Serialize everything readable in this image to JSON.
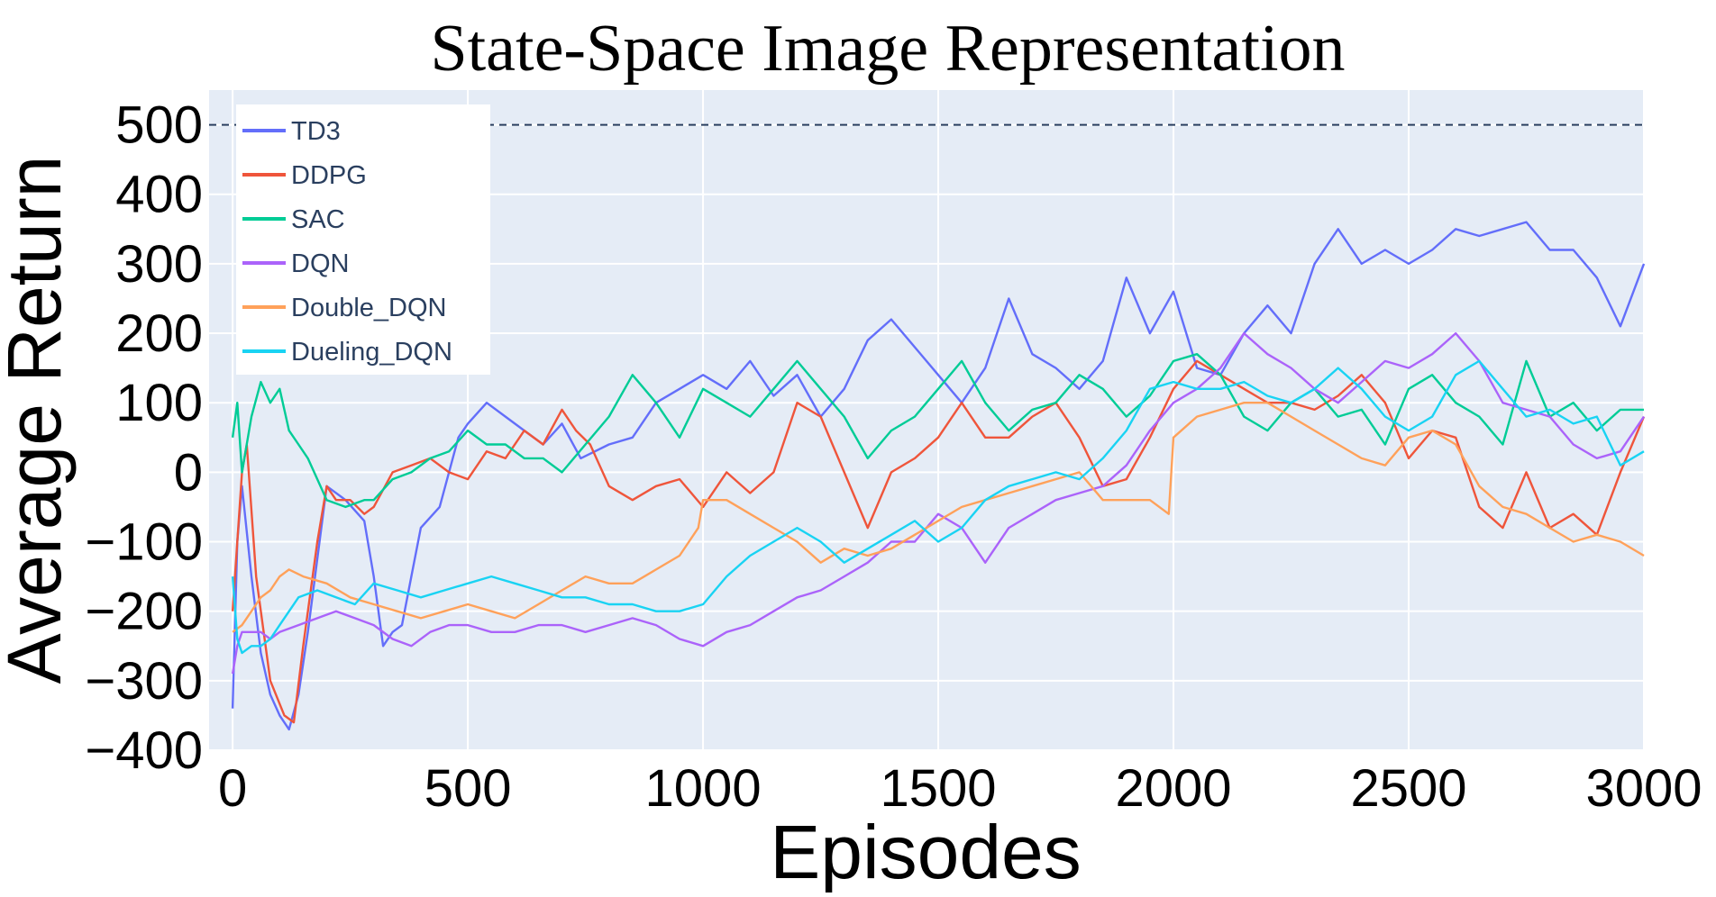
{
  "chart_data": {
    "type": "line",
    "title": "State-Space Image Representation",
    "xlabel": "Episodes",
    "ylabel": "Average Return",
    "xlim": [
      -50,
      3000
    ],
    "ylim": [
      -400,
      550
    ],
    "xticks": [
      0,
      500,
      1000,
      1500,
      2000,
      2500,
      3000
    ],
    "xtick_labels": [
      "0",
      "500",
      "1000",
      "1500",
      "2000",
      "2500",
      "3000"
    ],
    "yticks": [
      -400,
      -300,
      -200,
      -100,
      0,
      100,
      200,
      300,
      400,
      500
    ],
    "ytick_labels": [
      "−400",
      "−300",
      "−200",
      "−100",
      "0",
      "100",
      "200",
      "300",
      "400",
      "500"
    ],
    "grid": true,
    "background_color": "#e5ecf6",
    "legend_position": "top-left",
    "reference_line": {
      "y": 500,
      "style": "dashed",
      "color": "#2a3f5f"
    },
    "series": [
      {
        "name": "TD3",
        "color": "#636efa",
        "x": [
          0,
          10,
          20,
          40,
          60,
          80,
          100,
          120,
          140,
          160,
          200,
          240,
          280,
          300,
          320,
          340,
          360,
          380,
          400,
          440,
          480,
          500,
          540,
          580,
          620,
          660,
          700,
          740,
          800,
          850,
          900,
          950,
          1000,
          1050,
          1100,
          1150,
          1200,
          1250,
          1300,
          1350,
          1400,
          1450,
          1500,
          1550,
          1600,
          1650,
          1700,
          1750,
          1800,
          1850,
          1900,
          1950,
          2000,
          2050,
          2100,
          2150,
          2200,
          2250,
          2300,
          2350,
          2400,
          2450,
          2500,
          2550,
          2600,
          2650,
          2700,
          2750,
          2800,
          2850,
          2900,
          2950,
          3000
        ],
        "y": [
          -340,
          -100,
          -20,
          -150,
          -260,
          -320,
          -350,
          -370,
          -320,
          -230,
          -20,
          -40,
          -70,
          -150,
          -250,
          -230,
          -220,
          -150,
          -80,
          -50,
          50,
          70,
          100,
          80,
          60,
          40,
          70,
          20,
          40,
          50,
          100,
          120,
          140,
          120,
          160,
          110,
          140,
          80,
          120,
          190,
          220,
          180,
          140,
          100,
          150,
          250,
          170,
          150,
          120,
          160,
          280,
          200,
          260,
          150,
          140,
          200,
          240,
          200,
          300,
          350,
          300,
          320,
          300,
          320,
          350,
          340,
          350,
          360,
          320,
          320,
          280,
          210,
          300
        ]
      },
      {
        "name": "DDPG",
        "color": "#ef553b",
        "x": [
          0,
          10,
          20,
          30,
          50,
          80,
          110,
          130,
          150,
          180,
          200,
          220,
          250,
          280,
          300,
          340,
          380,
          420,
          460,
          500,
          540,
          580,
          620,
          660,
          700,
          730,
          760,
          800,
          850,
          900,
          950,
          1000,
          1050,
          1100,
          1150,
          1200,
          1250,
          1300,
          1350,
          1400,
          1450,
          1500,
          1550,
          1600,
          1650,
          1700,
          1750,
          1800,
          1850,
          1900,
          1950,
          2000,
          2050,
          2100,
          2150,
          2200,
          2250,
          2300,
          2350,
          2400,
          2450,
          2500,
          2550,
          2600,
          2650,
          2700,
          2750,
          2800,
          2850,
          2900,
          2950,
          3000
        ],
        "y": [
          -200,
          -100,
          0,
          40,
          -150,
          -300,
          -350,
          -360,
          -250,
          -100,
          -20,
          -40,
          -40,
          -60,
          -50,
          0,
          10,
          20,
          0,
          -10,
          30,
          20,
          60,
          40,
          90,
          60,
          40,
          -20,
          -40,
          -20,
          -10,
          -50,
          0,
          -30,
          0,
          100,
          80,
          0,
          -80,
          0,
          20,
          50,
          100,
          50,
          50,
          80,
          100,
          50,
          -20,
          -10,
          50,
          120,
          160,
          140,
          120,
          100,
          100,
          90,
          110,
          140,
          100,
          20,
          60,
          50,
          -50,
          -80,
          0,
          -80,
          -60,
          -90,
          0,
          80
        ]
      },
      {
        "name": "SAC",
        "color": "#00cc96",
        "x": [
          0,
          10,
          20,
          40,
          60,
          80,
          100,
          120,
          140,
          160,
          180,
          200,
          240,
          280,
          300,
          340,
          380,
          420,
          460,
          500,
          540,
          580,
          620,
          660,
          700,
          750,
          800,
          850,
          900,
          950,
          1000,
          1050,
          1100,
          1150,
          1200,
          1250,
          1300,
          1350,
          1400,
          1450,
          1500,
          1550,
          1600,
          1650,
          1700,
          1750,
          1800,
          1850,
          1900,
          1950,
          2000,
          2050,
          2100,
          2150,
          2200,
          2250,
          2300,
          2350,
          2400,
          2450,
          2500,
          2550,
          2600,
          2650,
          2700,
          2750,
          2800,
          2850,
          2900,
          2950,
          3000
        ],
        "y": [
          50,
          100,
          0,
          80,
          130,
          100,
          120,
          60,
          40,
          20,
          -10,
          -40,
          -50,
          -40,
          -40,
          -10,
          0,
          20,
          30,
          60,
          40,
          40,
          20,
          20,
          0,
          40,
          80,
          140,
          100,
          50,
          120,
          100,
          80,
          120,
          160,
          120,
          80,
          20,
          60,
          80,
          120,
          160,
          100,
          60,
          90,
          100,
          140,
          120,
          80,
          110,
          160,
          170,
          140,
          80,
          60,
          100,
          120,
          80,
          90,
          40,
          120,
          140,
          100,
          80,
          40,
          160,
          80,
          100,
          60,
          90,
          90
        ]
      },
      {
        "name": "DQN",
        "color": "#ab63fa",
        "x": [
          0,
          10,
          20,
          40,
          60,
          80,
          100,
          140,
          180,
          220,
          260,
          300,
          340,
          380,
          420,
          460,
          500,
          550,
          600,
          650,
          700,
          750,
          800,
          850,
          900,
          950,
          1000,
          1050,
          1100,
          1150,
          1200,
          1250,
          1300,
          1350,
          1400,
          1450,
          1500,
          1550,
          1600,
          1650,
          1700,
          1750,
          1800,
          1850,
          1900,
          1950,
          2000,
          2050,
          2100,
          2150,
          2200,
          2250,
          2300,
          2350,
          2400,
          2450,
          2500,
          2550,
          2600,
          2650,
          2700,
          2750,
          2800,
          2850,
          2900,
          2950,
          3000
        ],
        "y": [
          -290,
          -250,
          -230,
          -230,
          -230,
          -240,
          -230,
          -220,
          -210,
          -200,
          -210,
          -220,
          -240,
          -250,
          -230,
          -220,
          -220,
          -230,
          -230,
          -220,
          -220,
          -230,
          -220,
          -210,
          -220,
          -240,
          -250,
          -230,
          -220,
          -200,
          -180,
          -170,
          -150,
          -130,
          -100,
          -100,
          -60,
          -80,
          -130,
          -80,
          -60,
          -40,
          -30,
          -20,
          10,
          60,
          100,
          120,
          150,
          200,
          170,
          150,
          120,
          100,
          130,
          160,
          150,
          170,
          200,
          160,
          100,
          90,
          80,
          40,
          20,
          30,
          80
        ]
      },
      {
        "name": "Double_DQN",
        "color": "#ffa15a",
        "x": [
          0,
          20,
          40,
          60,
          80,
          100,
          120,
          150,
          200,
          250,
          300,
          350,
          400,
          450,
          500,
          550,
          600,
          650,
          700,
          750,
          800,
          850,
          900,
          950,
          990,
          1000,
          1050,
          1100,
          1150,
          1200,
          1250,
          1300,
          1350,
          1400,
          1450,
          1500,
          1550,
          1600,
          1650,
          1700,
          1750,
          1800,
          1850,
          1900,
          1950,
          1990,
          2000,
          2050,
          2100,
          2150,
          2200,
          2250,
          2300,
          2350,
          2400,
          2450,
          2500,
          2550,
          2600,
          2650,
          2700,
          2750,
          2800,
          2850,
          2900,
          2950,
          3000
        ],
        "y": [
          -230,
          -220,
          -200,
          -180,
          -170,
          -150,
          -140,
          -150,
          -160,
          -180,
          -190,
          -200,
          -210,
          -200,
          -190,
          -200,
          -210,
          -190,
          -170,
          -150,
          -160,
          -160,
          -140,
          -120,
          -80,
          -40,
          -40,
          -60,
          -80,
          -100,
          -130,
          -110,
          -120,
          -110,
          -90,
          -70,
          -50,
          -40,
          -30,
          -20,
          -10,
          0,
          -40,
          -40,
          -40,
          -60,
          50,
          80,
          90,
          100,
          100,
          80,
          60,
          40,
          20,
          10,
          50,
          60,
          40,
          -20,
          -50,
          -60,
          -80,
          -100,
          -90,
          -100,
          -120
        ]
      },
      {
        "name": "Dueling_DQN",
        "color": "#19d3f3",
        "x": [
          0,
          10,
          20,
          40,
          60,
          80,
          100,
          140,
          180,
          220,
          260,
          300,
          350,
          400,
          450,
          500,
          550,
          600,
          650,
          700,
          750,
          800,
          850,
          900,
          950,
          1000,
          1050,
          1100,
          1150,
          1200,
          1250,
          1300,
          1350,
          1400,
          1450,
          1500,
          1550,
          1600,
          1650,
          1700,
          1750,
          1800,
          1850,
          1900,
          1950,
          2000,
          2050,
          2100,
          2150,
          2200,
          2250,
          2300,
          2350,
          2400,
          2450,
          2500,
          2550,
          2600,
          2650,
          2700,
          2750,
          2800,
          2850,
          2900,
          2950,
          3000
        ],
        "y": [
          -150,
          -240,
          -260,
          -250,
          -250,
          -240,
          -220,
          -180,
          -170,
          -180,
          -190,
          -160,
          -170,
          -180,
          -170,
          -160,
          -150,
          -160,
          -170,
          -180,
          -180,
          -190,
          -190,
          -200,
          -200,
          -190,
          -150,
          -120,
          -100,
          -80,
          -100,
          -130,
          -110,
          -90,
          -70,
          -100,
          -80,
          -40,
          -20,
          -10,
          0,
          -10,
          20,
          60,
          120,
          130,
          120,
          120,
          130,
          110,
          100,
          120,
          150,
          120,
          80,
          60,
          80,
          140,
          160,
          120,
          80,
          90,
          70,
          80,
          10,
          30
        ]
      }
    ]
  }
}
